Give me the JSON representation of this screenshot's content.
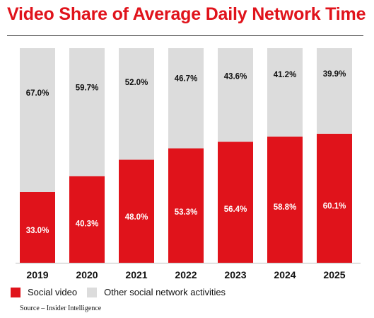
{
  "chart_data": {
    "type": "bar",
    "stacked": true,
    "title": "Video Share of Average Daily Network Time",
    "categories": [
      "2019",
      "2020",
      "2021",
      "2022",
      "2023",
      "2024",
      "2025"
    ],
    "series": [
      {
        "name": "Social video",
        "color": "#e0131b",
        "values": [
          33.0,
          40.3,
          48.0,
          53.3,
          56.4,
          58.8,
          60.1
        ],
        "labels": [
          "33.0%",
          "40.3%",
          "48.0%",
          "53.3%",
          "56.4%",
          "58.8%",
          "60.1%"
        ]
      },
      {
        "name": "Other social network activities",
        "color": "#dcdcdc",
        "values": [
          67.0,
          59.7,
          52.0,
          46.7,
          43.6,
          41.2,
          39.9
        ],
        "labels": [
          "67.0%",
          "59.7%",
          "52.0%",
          "46.7%",
          "43.6%",
          "41.2%",
          "39.9%"
        ]
      }
    ],
    "ylim": [
      0,
      100
    ],
    "grid": false,
    "legend_position": "bottom-left",
    "source": "Source – Insider Intelligence"
  }
}
